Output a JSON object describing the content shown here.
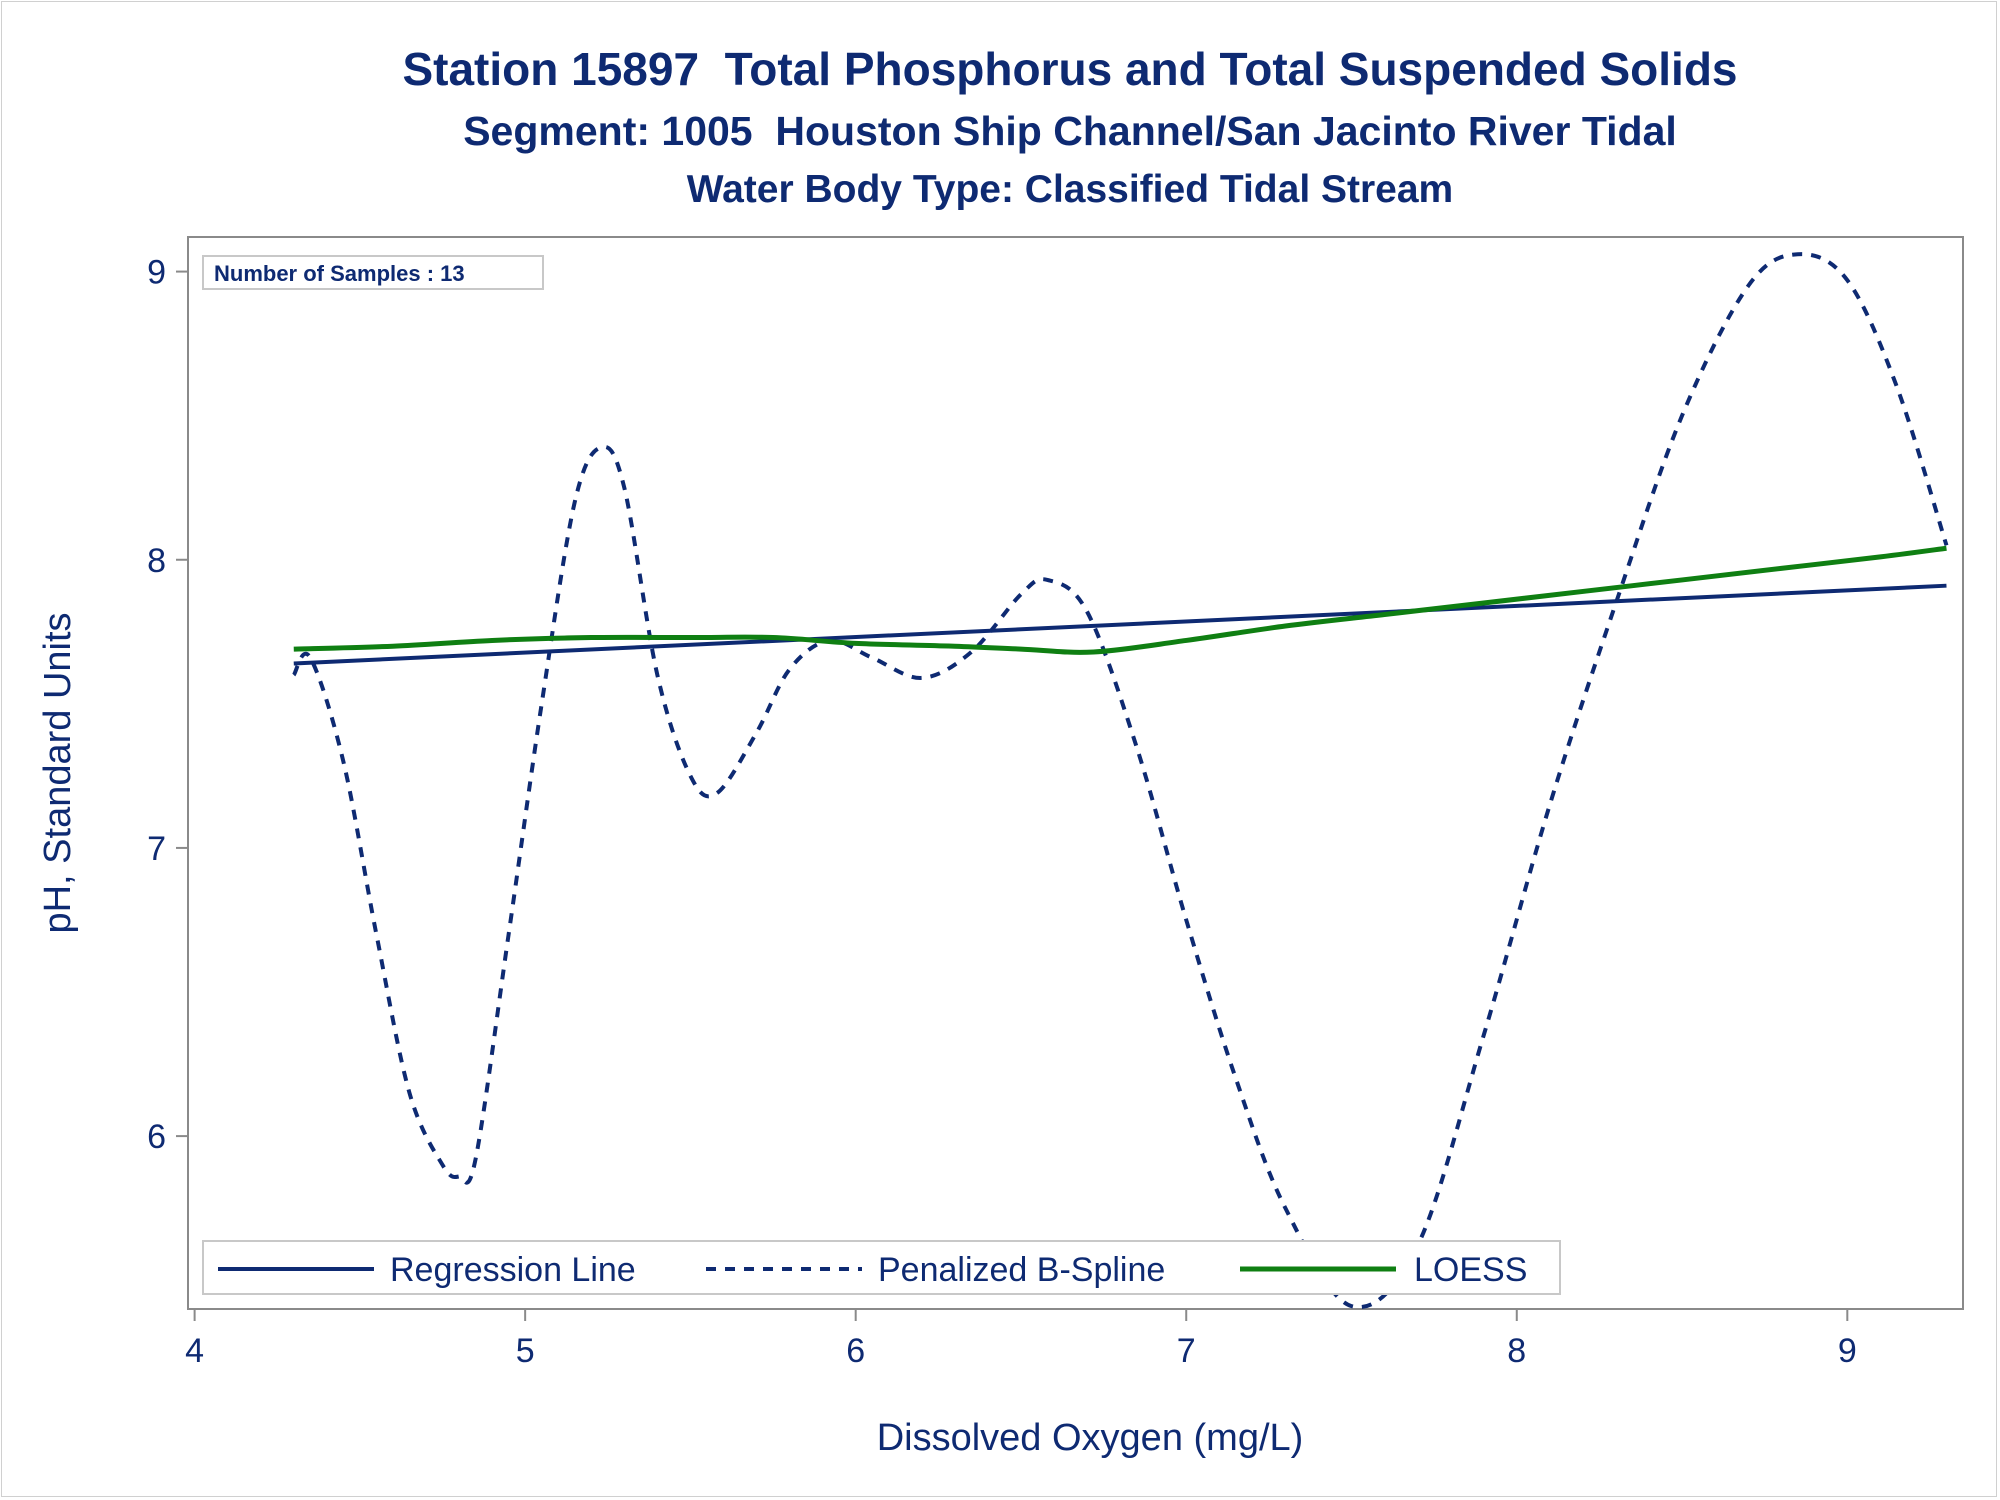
{
  "titles": {
    "line1": "Station 15897  Total Phosphorus and Total Suspended Solids",
    "line2": "Segment: 1005  Houston Ship Channel/San Jacinto River Tidal",
    "line3": "Water Body Type: Classified Tidal Stream"
  },
  "inset": {
    "text": "Number of Samples : 13"
  },
  "colors": {
    "navy": "#0e2a72",
    "loess": "#0f7f12",
    "frame": "#8a8a8a"
  },
  "chart_data": {
    "type": "line",
    "xlabel": "Dissolved Oxygen (mg/L)",
    "ylabel": "pH, Standard Units",
    "xlim": [
      3.98,
      9.35
    ],
    "ylim": [
      5.4,
      9.12
    ],
    "xticks": [
      4,
      5,
      6,
      7,
      8,
      9
    ],
    "yticks": [
      6,
      7,
      8,
      9
    ],
    "grid": false,
    "legend_position": "bottom-left-inside",
    "series": [
      {
        "name": "Regression Line",
        "style": "solid",
        "color": "#0e2a72",
        "x": [
          4.3,
          9.3
        ],
        "y": [
          7.64,
          7.91
        ]
      },
      {
        "name": "Penalized B-Spline",
        "style": "dashed",
        "color": "#0e2a72",
        "x": [
          4.3,
          4.35,
          4.45,
          4.55,
          4.65,
          4.75,
          4.8,
          4.85,
          4.95,
          5.05,
          5.15,
          5.23,
          5.3,
          5.4,
          5.5,
          5.58,
          5.7,
          5.8,
          5.92,
          6.05,
          6.2,
          6.35,
          6.5,
          6.58,
          6.7,
          6.85,
          7.0,
          7.15,
          7.3,
          7.5,
          7.7,
          7.9,
          8.1,
          8.3,
          8.5,
          8.7,
          8.85,
          9.0,
          9.15,
          9.3
        ],
        "y": [
          7.6,
          7.66,
          7.3,
          6.7,
          6.15,
          5.9,
          5.86,
          5.92,
          6.7,
          7.5,
          8.2,
          8.39,
          8.25,
          7.6,
          7.25,
          7.19,
          7.4,
          7.62,
          7.72,
          7.66,
          7.59,
          7.68,
          7.88,
          7.93,
          7.82,
          7.35,
          6.75,
          6.2,
          5.75,
          5.41,
          5.62,
          6.35,
          7.15,
          7.85,
          8.5,
          8.95,
          9.06,
          8.97,
          8.6,
          8.05
        ]
      },
      {
        "name": "LOESS",
        "style": "solid",
        "color": "#0f7f12",
        "x": [
          4.3,
          4.6,
          4.9,
          5.2,
          5.5,
          5.75,
          6.0,
          6.3,
          6.5,
          6.72,
          7.0,
          7.3,
          7.6,
          7.9,
          8.2,
          8.5,
          8.8,
          9.1,
          9.3
        ],
        "y": [
          7.69,
          7.7,
          7.72,
          7.73,
          7.73,
          7.73,
          7.71,
          7.7,
          7.69,
          7.68,
          7.72,
          7.77,
          7.81,
          7.85,
          7.89,
          7.93,
          7.97,
          8.01,
          8.04
        ]
      }
    ]
  }
}
